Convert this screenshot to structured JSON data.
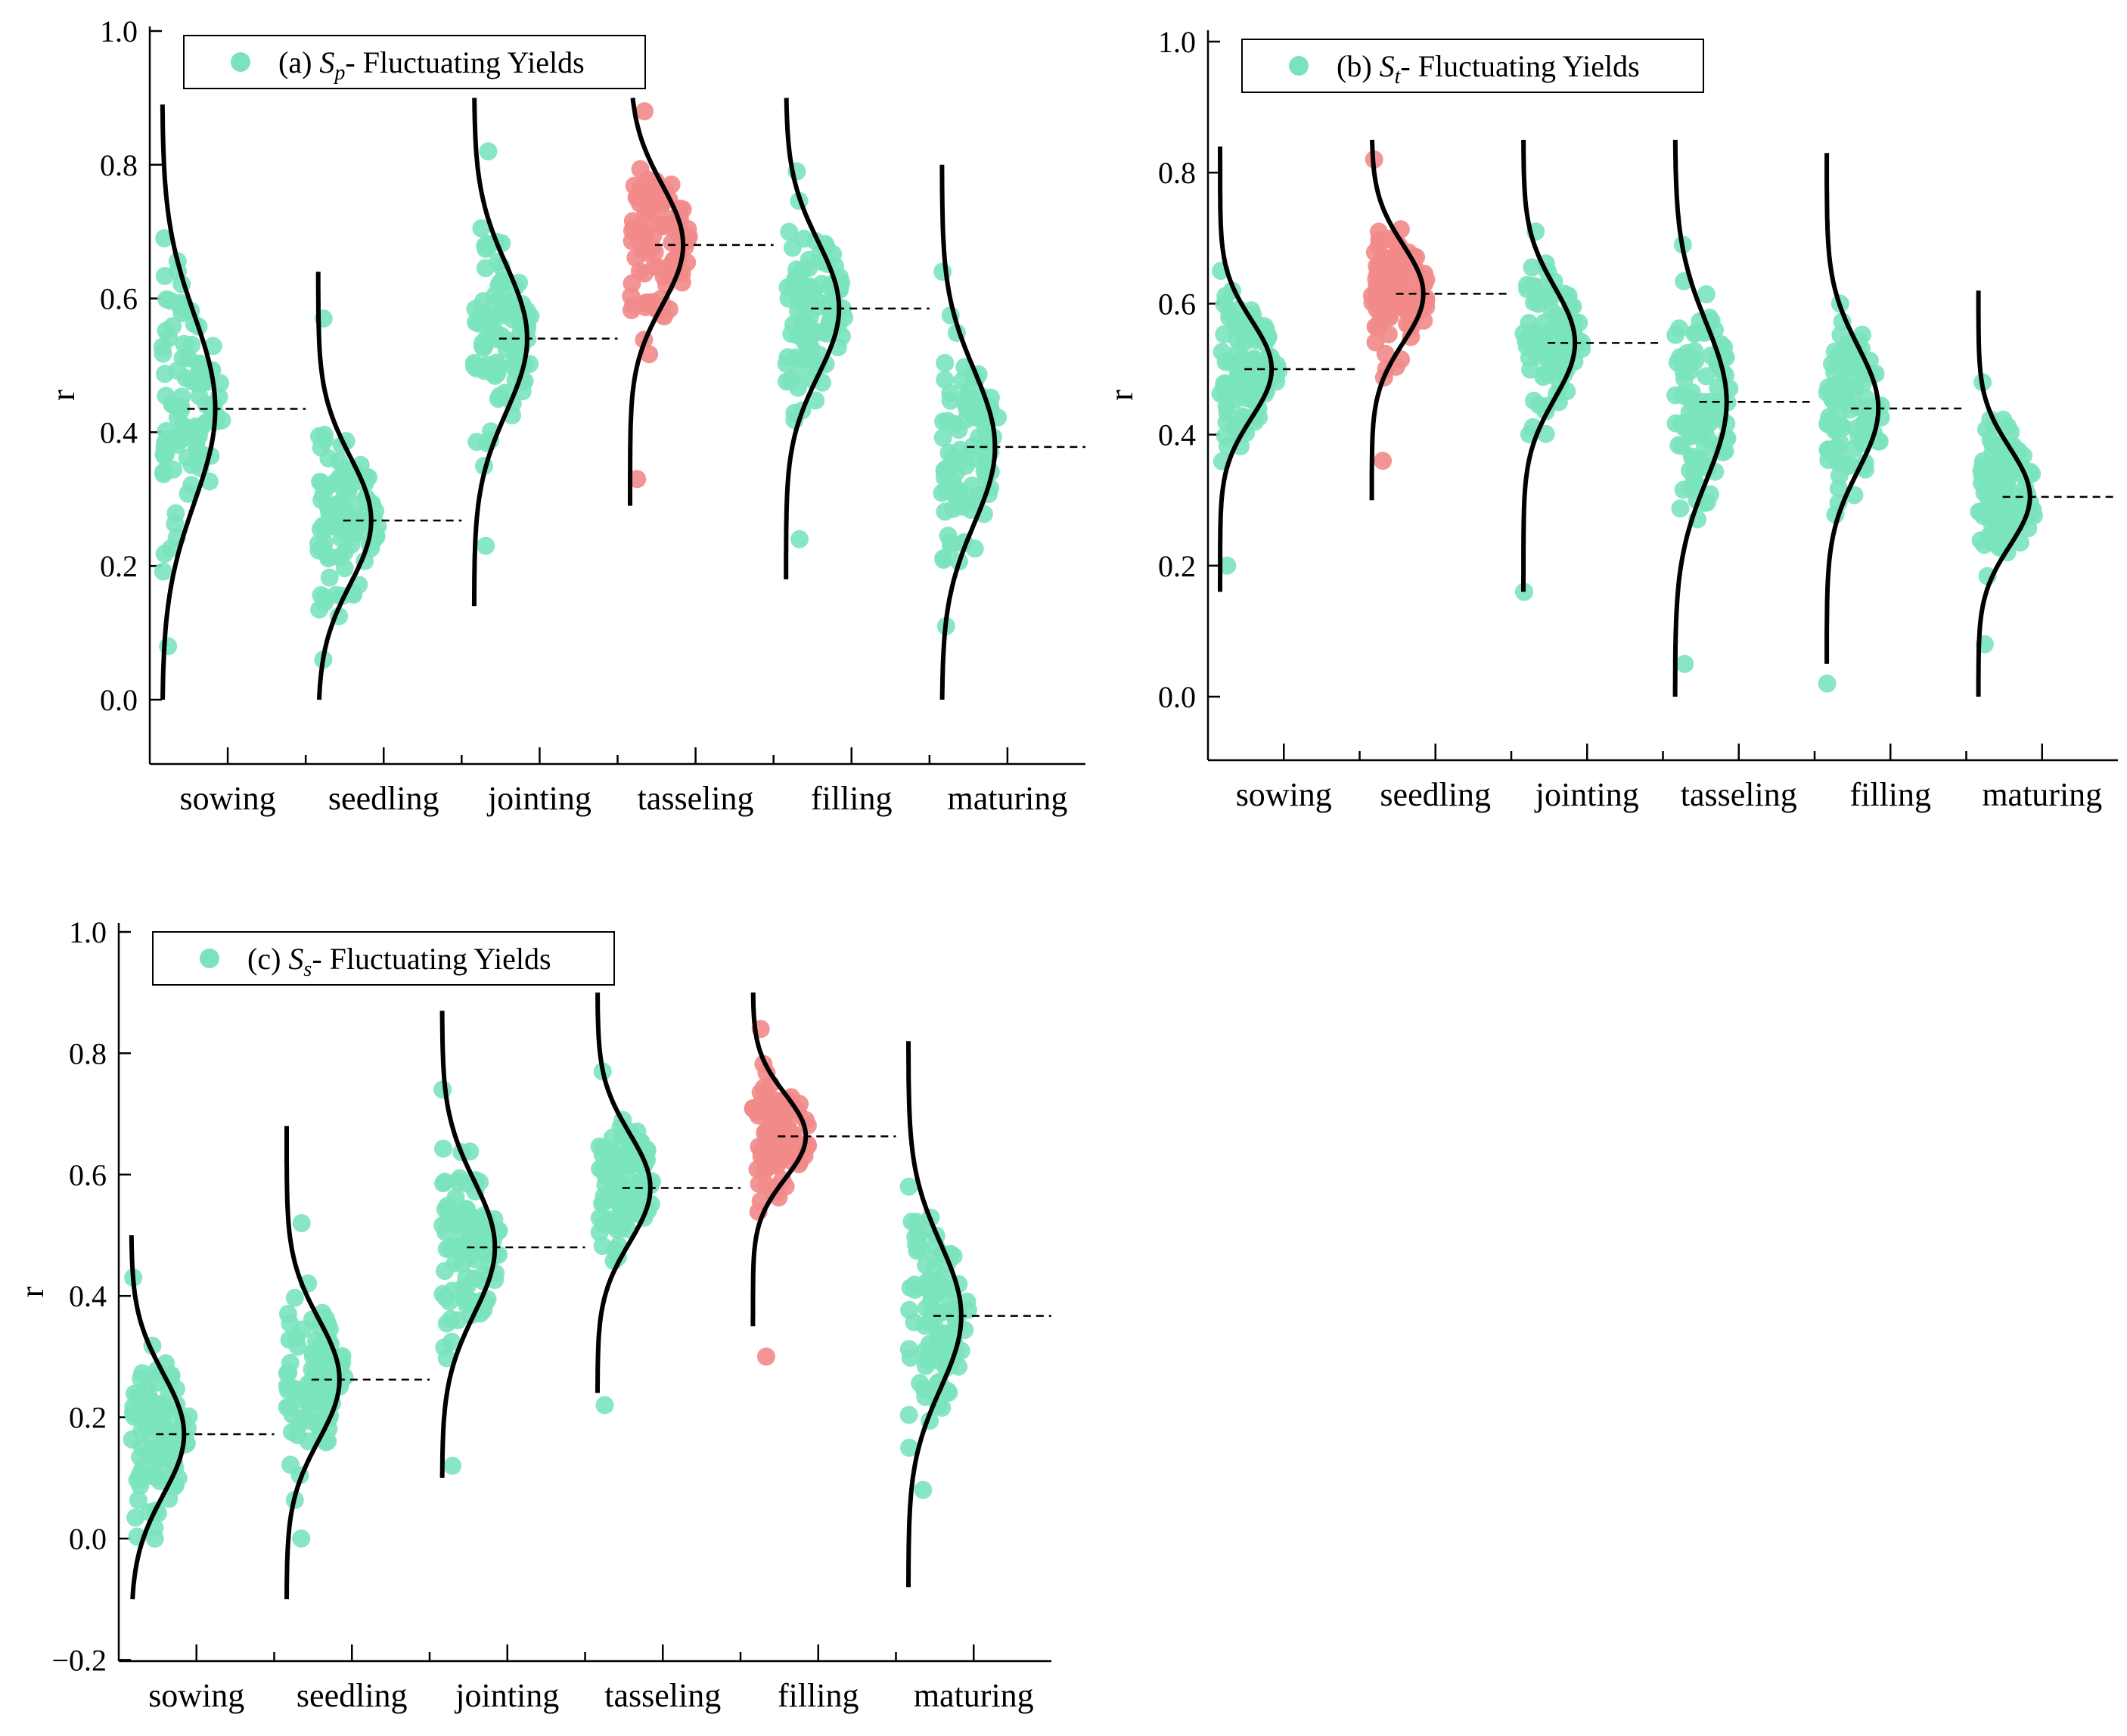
{
  "colors": {
    "normal": "#7ae3bd",
    "highlight": "#f28a8a",
    "curve": "#000000"
  },
  "chart_data": [
    {
      "id": "a",
      "type": "scatter",
      "title": "(a) Sp- Fluctuating Yields",
      "legend": {
        "prefix": "(a) ",
        "sym": "S",
        "sub": "p",
        "suffix": "- Fluctuating Yields",
        "position": "top-left"
      },
      "ylabel": "r",
      "ylim": [
        -0.1,
        1.0
      ],
      "yticks": [
        "0.0",
        "0.2",
        "0.4",
        "0.6",
        "0.8",
        "1.0"
      ],
      "categories": [
        "sowing",
        "seedling",
        "jointing",
        "tasseling",
        "filling",
        "maturing"
      ],
      "means": [
        0.435,
        0.268,
        0.54,
        0.68,
        0.585,
        0.378
      ],
      "sds": [
        0.14,
        0.095,
        0.11,
        0.09,
        0.1,
        0.115
      ],
      "curve_ranges": [
        [
          0.0,
          0.89
        ],
        [
          0.0,
          0.64
        ],
        [
          0.14,
          0.9
        ],
        [
          0.29,
          0.9
        ],
        [
          0.18,
          0.9
        ],
        [
          0.0,
          0.8
        ]
      ],
      "data_ranges": [
        [
          0.08,
          0.69
        ],
        [
          0.06,
          0.57
        ],
        [
          0.23,
          0.82
        ],
        [
          0.33,
          0.88
        ],
        [
          0.24,
          0.79
        ],
        [
          0.11,
          0.64
        ]
      ],
      "highlight": [
        3
      ]
    },
    {
      "id": "b",
      "type": "scatter",
      "title": "(b) St- Fluctuating Yields",
      "legend": {
        "prefix": "(b) ",
        "sym": "S",
        "sub": "t",
        "suffix": "- Fluctuating Yields",
        "position": "top-left"
      },
      "ylabel": "r",
      "ylim": [
        -0.1,
        1.0
      ],
      "yticks": [
        "0.0",
        "0.2",
        "0.4",
        "0.6",
        "0.8",
        "1.0"
      ],
      "categories": [
        "sowing",
        "seedling",
        "jointing",
        "tasseling",
        "filling",
        "maturing"
      ],
      "means": [
        0.5,
        0.615,
        0.54,
        0.45,
        0.44,
        0.305
      ],
      "sds": [
        0.075,
        0.075,
        0.085,
        0.12,
        0.095,
        0.075
      ],
      "curve_ranges": [
        [
          0.16,
          0.84
        ],
        [
          0.3,
          0.85
        ],
        [
          0.16,
          0.85
        ],
        [
          0.0,
          0.85
        ],
        [
          0.05,
          0.83
        ],
        [
          0.0,
          0.62
        ]
      ],
      "data_ranges": [
        [
          0.2,
          0.65
        ],
        [
          0.36,
          0.82
        ],
        [
          0.16,
          0.71
        ],
        [
          0.05,
          0.69
        ],
        [
          0.02,
          0.6
        ],
        [
          0.08,
          0.48
        ]
      ],
      "highlight": [
        1
      ]
    },
    {
      "id": "c",
      "type": "scatter",
      "title": "(c) Ss- Fluctuating Yields",
      "legend": {
        "prefix": "(c) ",
        "sym": "S",
        "sub": "s",
        "suffix": "- Fluctuating Yields",
        "position": "top-left"
      },
      "ylabel": "r",
      "ylim": [
        -0.2,
        1.0
      ],
      "yticks": [
        "−0.2",
        "0.0",
        "0.2",
        "0.4",
        "0.6",
        "0.8",
        "1.0"
      ],
      "categories": [
        "sowing",
        "seedling",
        "jointing",
        "tasseling",
        "filling",
        "maturing"
      ],
      "means": [
        0.172,
        0.262,
        0.48,
        0.578,
        0.663,
        0.367
      ],
      "sds": [
        0.1,
        0.1,
        0.11,
        0.09,
        0.07,
        0.12
      ],
      "curve_ranges": [
        [
          -0.1,
          0.5
        ],
        [
          -0.1,
          0.68
        ],
        [
          0.1,
          0.87
        ],
        [
          0.24,
          0.9
        ],
        [
          0.35,
          0.9
        ],
        [
          -0.08,
          0.82
        ]
      ],
      "data_ranges": [
        [
          0.0,
          0.43
        ],
        [
          0.0,
          0.52
        ],
        [
          0.12,
          0.74
        ],
        [
          0.22,
          0.77
        ],
        [
          0.3,
          0.84
        ],
        [
          0.08,
          0.58
        ]
      ],
      "highlight": [
        4
      ]
    }
  ]
}
